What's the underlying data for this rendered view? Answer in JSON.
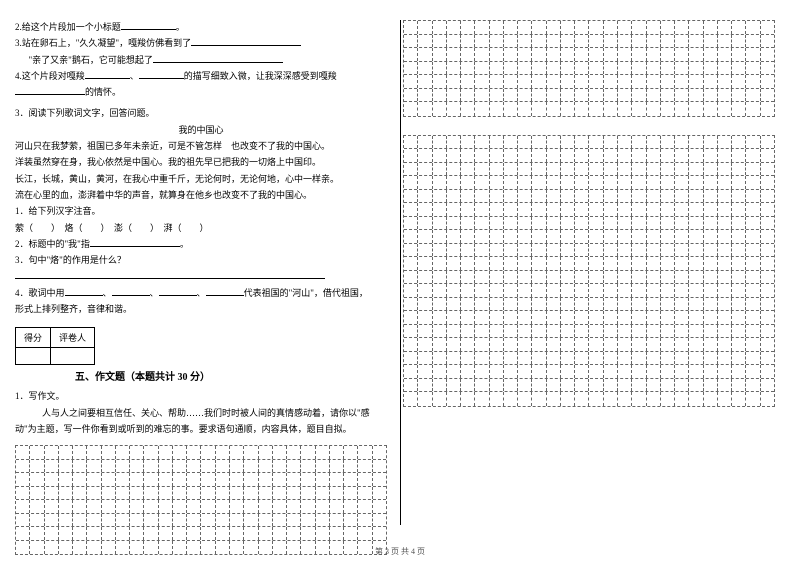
{
  "leftCol": {
    "q2": "2.给这个片段加一个小标题",
    "q3a": "3.站在卵石上，\"久久凝望\"，嘎羧仿佛看到了",
    "q3b": "\"亲了又亲\"鹅石，它可能想起了",
    "q4a": "4.这个片段对嘎羧",
    "q4b": "的描写细致入微，让我深深感受到嘎羧",
    "q4c": "的情怀。",
    "s3intro": "3．阅读下列歌词文字，回答问题。",
    "title": "我的中国心",
    "p1": "河山只在我梦萦，祖国已多年未亲近，可是不管怎样　也改变不了我的中国心。",
    "p2": "洋装虽然穿在身，我心依然是中国心。我的祖先早已把我的一切烙上中国印。",
    "p3": "长江，长城，黄山，黄河，在我心中重千斤，无论何时，无论何地，心中一样亲。",
    "p4": "流在心里的血，澎湃着中华的声音，就算身在他乡也改变不了我的中国心。",
    "sub1": "1．给下列汉字注音。",
    "sub1items": "萦（　　）　烙（　　）　澎（　　）　湃（　　）",
    "sub2": "2．标题中的\"我\"指",
    "sub3": "3．句中\"烙\"的作用是什么？",
    "sub4a": "4．歌词中用",
    "sub4b": "代表祖国的\"河山\"，借代祖国，",
    "sub4c": "形式上排列整齐，音律和谐。",
    "score1": "得分",
    "score2": "评卷人",
    "sectionTitle": "五、作文题（本题共计 30 分）",
    "essay1": "1．写作文。",
    "essay2": "人与人之间要相互信任、关心、帮助……我们时时被人间的真情感动着，请你以\"感",
    "essay3": "动\"为主题，写一件你看到或听到的难忘的事。要求语句通顺，内容具体，题目自拟。",
    "gridRows": 8,
    "gridCols": 26
  },
  "rightCol": {
    "grids": [
      {
        "rows": 7,
        "cols": 26
      },
      {
        "rows": 20,
        "cols": 26
      }
    ]
  },
  "footer": "第 3 页 共 4 页",
  "blanks": {
    "short": 50,
    "med": 100,
    "long": 150,
    "xlong": 200
  }
}
